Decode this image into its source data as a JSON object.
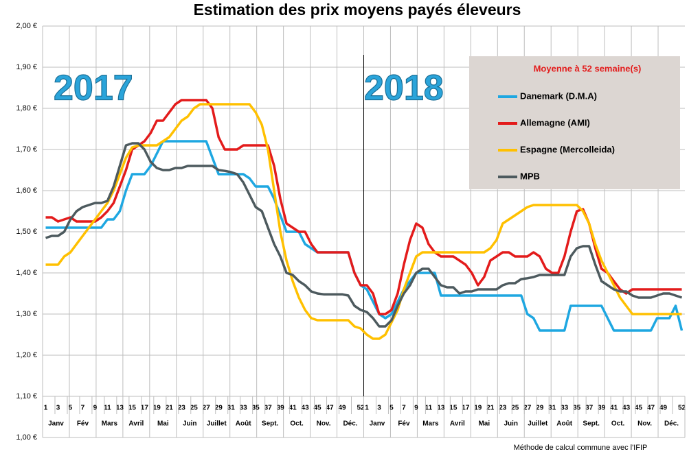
{
  "chart_data": {
    "type": "line",
    "title": "Estimation des prix moyens payés éleveurs",
    "annotations": [
      "2017",
      "2018"
    ],
    "footnote": "Méthode de calcul commune avec l'IFIP",
    "legend": {
      "title": "Moyenne à  52 semaine(s)",
      "position": "upper right"
    },
    "grid": true,
    "categories": [
      "1",
      null,
      "3",
      null,
      "5",
      null,
      "7",
      null,
      "9",
      null,
      "11",
      null,
      "13",
      null,
      "15",
      null,
      "17",
      null,
      "19",
      null,
      "21",
      null,
      "23",
      null,
      "25",
      null,
      "27",
      null,
      "29",
      null,
      "31",
      null,
      "33",
      null,
      "35",
      null,
      "37",
      null,
      "39",
      null,
      "41",
      null,
      "43",
      null,
      "45",
      null,
      "47",
      null,
      "49",
      null,
      null,
      "52",
      "1",
      null,
      "3",
      null,
      "5",
      null,
      "7",
      null,
      "9",
      null,
      "11",
      null,
      "13",
      null,
      "15",
      null,
      "17",
      null,
      "19",
      null,
      "21",
      null,
      "23",
      null,
      "25",
      null,
      "27",
      null,
      "29",
      null,
      "31",
      null,
      "33",
      null,
      "35",
      null,
      "37",
      null,
      "39",
      null,
      "41",
      null,
      "43",
      null,
      "45",
      null,
      "47",
      null,
      "49",
      null,
      null,
      "52"
    ],
    "months": [
      "Janv",
      "Fév",
      "Mars",
      "Avril",
      "Mai",
      "Juin",
      "Juillet",
      "Août",
      "Sept.",
      "Oct.",
      "Nov.",
      "Déc.",
      "Janv",
      "Fév",
      "Mars",
      "Avril",
      "Mai",
      "Juin",
      "Juillet",
      "Août",
      "Sept.",
      "Oct.",
      "Nov.",
      "Déc."
    ],
    "ylim": [
      1.0,
      2.0
    ],
    "yticks": [
      {
        "value": 1.0,
        "label": "1,00 €"
      },
      {
        "value": 1.1,
        "label": "1,10 €"
      },
      {
        "value": 1.2,
        "label": "1,20 €"
      },
      {
        "value": 1.3,
        "label": "1,30 €"
      },
      {
        "value": 1.4,
        "label": "1,40 €"
      },
      {
        "value": 1.5,
        "label": "1,50 €"
      },
      {
        "value": 1.6,
        "label": "1,60 €"
      },
      {
        "value": 1.7,
        "label": "1,70 €"
      },
      {
        "value": 1.8,
        "label": "1,80 €"
      },
      {
        "value": 1.9,
        "label": "1,90 €"
      },
      {
        "value": 2.0,
        "label": "2,00 €"
      }
    ],
    "series": [
      {
        "name": "Danemark (D.M.A)",
        "color": "#1ea7e1",
        "values": [
          1.51,
          1.51,
          1.51,
          1.51,
          1.51,
          1.51,
          1.51,
          1.51,
          1.51,
          1.51,
          1.53,
          1.53,
          1.55,
          1.6,
          1.64,
          1.64,
          1.64,
          1.66,
          1.69,
          1.72,
          1.72,
          1.72,
          1.72,
          1.72,
          1.72,
          1.72,
          1.72,
          1.68,
          1.64,
          1.64,
          1.64,
          1.64,
          1.64,
          1.63,
          1.61,
          1.61,
          1.61,
          1.58,
          1.54,
          1.5,
          1.5,
          1.5,
          1.47,
          1.46,
          1.45,
          1.45,
          1.45,
          1.45,
          1.45,
          1.45,
          1.4,
          1.37,
          1.36,
          1.33,
          1.3,
          1.29,
          1.3,
          1.33,
          1.36,
          1.38,
          1.4,
          1.4,
          1.4,
          1.4,
          1.345,
          1.345,
          1.345,
          1.345,
          1.345,
          1.345,
          1.345,
          1.345,
          1.345,
          1.345,
          1.345,
          1.345,
          1.345,
          1.345,
          1.3,
          1.29,
          1.26,
          1.26,
          1.26,
          1.26,
          1.26,
          1.32,
          1.32,
          1.32,
          1.32,
          1.32,
          1.32,
          1.29,
          1.26,
          1.26,
          1.26,
          1.26,
          1.26,
          1.26,
          1.26,
          1.29,
          1.29,
          1.29,
          1.32,
          1.26
        ]
      },
      {
        "name": "Allemagne (AMI)",
        "color": "#e31b1b",
        "values": [
          1.535,
          1.535,
          1.525,
          1.53,
          1.535,
          1.525,
          1.525,
          1.525,
          1.525,
          1.535,
          1.55,
          1.57,
          1.61,
          1.65,
          1.7,
          1.71,
          1.72,
          1.74,
          1.77,
          1.77,
          1.79,
          1.81,
          1.82,
          1.82,
          1.82,
          1.82,
          1.82,
          1.8,
          1.73,
          1.7,
          1.7,
          1.7,
          1.71,
          1.71,
          1.71,
          1.71,
          1.71,
          1.66,
          1.58,
          1.52,
          1.51,
          1.5,
          1.5,
          1.47,
          1.45,
          1.45,
          1.45,
          1.45,
          1.45,
          1.45,
          1.4,
          1.37,
          1.37,
          1.35,
          1.3,
          1.3,
          1.31,
          1.35,
          1.42,
          1.48,
          1.52,
          1.51,
          1.47,
          1.45,
          1.44,
          1.44,
          1.44,
          1.43,
          1.42,
          1.4,
          1.37,
          1.39,
          1.43,
          1.44,
          1.45,
          1.45,
          1.44,
          1.44,
          1.44,
          1.45,
          1.44,
          1.41,
          1.4,
          1.4,
          1.44,
          1.5,
          1.55,
          1.555,
          1.52,
          1.46,
          1.41,
          1.4,
          1.38,
          1.36,
          1.35,
          1.36,
          1.36,
          1.36,
          1.36,
          1.36,
          1.36,
          1.36,
          1.36,
          1.36
        ]
      },
      {
        "name": "Espagne (Mercolleida)",
        "color": "#ffc000",
        "values": [
          1.42,
          1.42,
          1.42,
          1.44,
          1.45,
          1.47,
          1.49,
          1.51,
          1.53,
          1.55,
          1.57,
          1.6,
          1.64,
          1.68,
          1.705,
          1.71,
          1.71,
          1.71,
          1.71,
          1.72,
          1.73,
          1.75,
          1.77,
          1.78,
          1.8,
          1.81,
          1.81,
          1.81,
          1.81,
          1.81,
          1.81,
          1.81,
          1.81,
          1.81,
          1.79,
          1.76,
          1.7,
          1.6,
          1.5,
          1.43,
          1.38,
          1.34,
          1.31,
          1.29,
          1.285,
          1.285,
          1.285,
          1.285,
          1.285,
          1.285,
          1.27,
          1.265,
          1.25,
          1.24,
          1.24,
          1.25,
          1.28,
          1.31,
          1.36,
          1.4,
          1.44,
          1.45,
          1.45,
          1.45,
          1.45,
          1.45,
          1.45,
          1.45,
          1.45,
          1.45,
          1.45,
          1.45,
          1.46,
          1.48,
          1.52,
          1.53,
          1.54,
          1.55,
          1.56,
          1.565,
          1.565,
          1.565,
          1.565,
          1.565,
          1.565,
          1.565,
          1.565,
          1.55,
          1.52,
          1.47,
          1.43,
          1.4,
          1.37,
          1.34,
          1.32,
          1.3,
          1.3,
          1.3,
          1.3,
          1.3,
          1.3,
          1.3,
          1.3,
          1.3
        ]
      },
      {
        "name": "MPB",
        "color": "#4d5a5e",
        "values": [
          1.485,
          1.49,
          1.49,
          1.5,
          1.53,
          1.55,
          1.56,
          1.565,
          1.57,
          1.57,
          1.575,
          1.61,
          1.66,
          1.71,
          1.715,
          1.715,
          1.7,
          1.67,
          1.655,
          1.65,
          1.65,
          1.655,
          1.655,
          1.66,
          1.66,
          1.66,
          1.66,
          1.66,
          1.65,
          1.648,
          1.645,
          1.64,
          1.62,
          1.59,
          1.56,
          1.55,
          1.51,
          1.47,
          1.44,
          1.4,
          1.395,
          1.38,
          1.37,
          1.355,
          1.35,
          1.348,
          1.348,
          1.348,
          1.348,
          1.345,
          1.32,
          1.31,
          1.305,
          1.29,
          1.27,
          1.27,
          1.285,
          1.32,
          1.35,
          1.37,
          1.4,
          1.41,
          1.41,
          1.39,
          1.37,
          1.365,
          1.365,
          1.35,
          1.355,
          1.355,
          1.36,
          1.36,
          1.36,
          1.36,
          1.37,
          1.375,
          1.375,
          1.385,
          1.387,
          1.39,
          1.395,
          1.395,
          1.395,
          1.395,
          1.395,
          1.44,
          1.46,
          1.465,
          1.465,
          1.42,
          1.38,
          1.37,
          1.36,
          1.355,
          1.355,
          1.345,
          1.34,
          1.34,
          1.34,
          1.345,
          1.35,
          1.35,
          1.345,
          1.34
        ]
      }
    ]
  }
}
